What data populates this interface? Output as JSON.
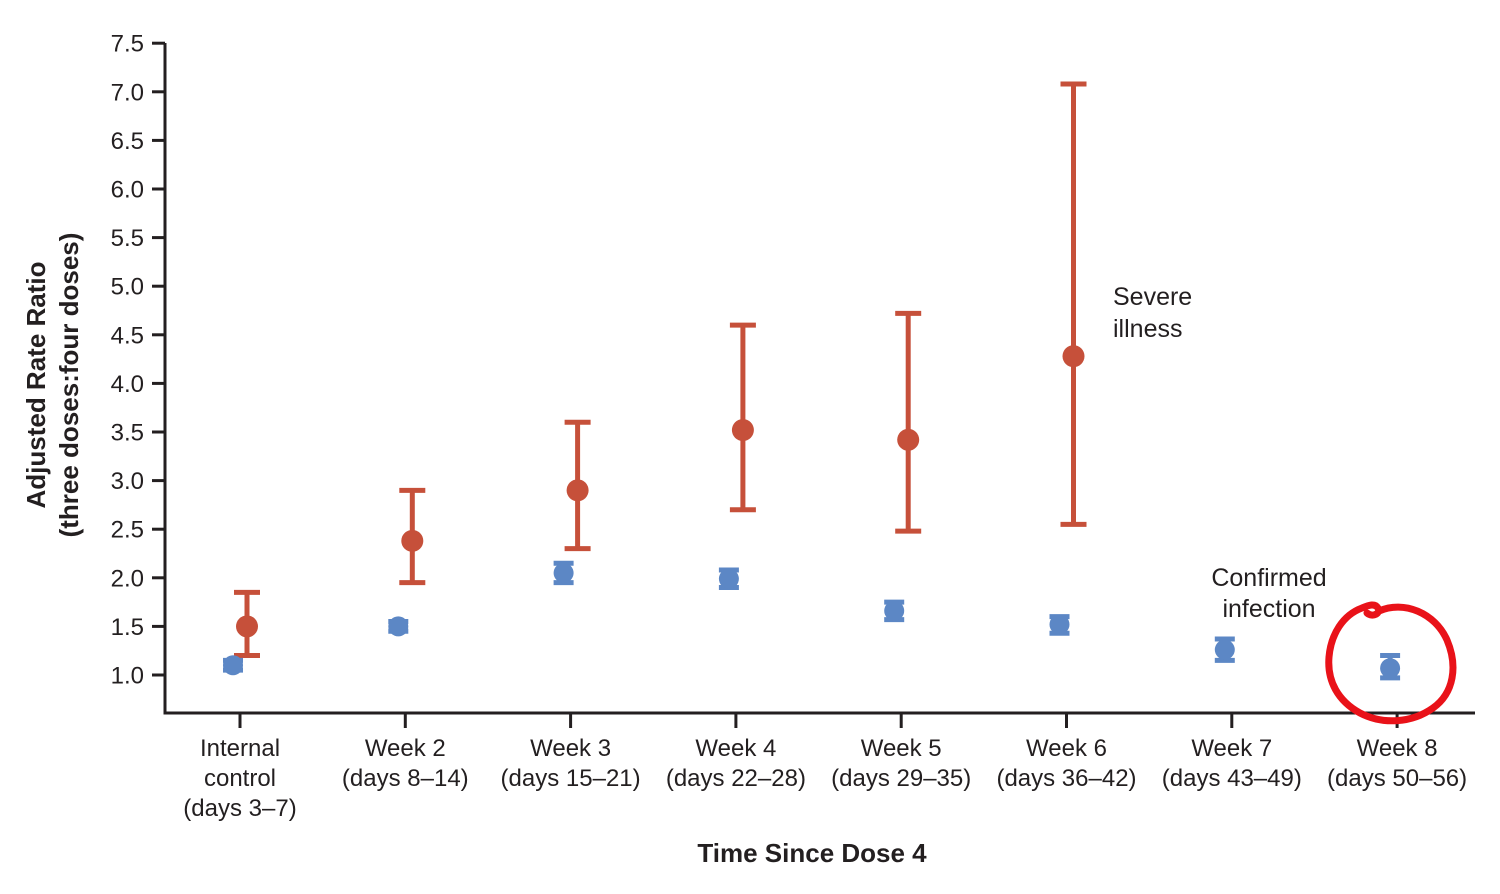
{
  "figure": {
    "background": "#ffffff",
    "y_axis_title_line1": "Adjusted Rate Ratio",
    "y_axis_title_line2": "(three doses:four doses)",
    "x_axis_title": "Time Since Dose 4",
    "severe_label": {
      "line1": "Severe",
      "line2": "illness"
    },
    "confirmed_label": {
      "line1": "Confirmed",
      "line2": "infection"
    }
  },
  "colors": {
    "severe_series": "#c6503a",
    "confirmed_series": "#5c87c5",
    "axis": "#231f20",
    "text": "#231f20",
    "annotation_circle": "#e91219"
  },
  "chart_data": {
    "type": "scatter",
    "title": "",
    "xlabel": "Time Since Dose 4",
    "ylabel": "Adjusted Rate Ratio (three doses:four doses)",
    "ylim": [
      0.6,
      7.5
    ],
    "yticks": [
      1.0,
      1.5,
      2.0,
      2.5,
      3.0,
      3.5,
      4.0,
      4.5,
      5.0,
      5.5,
      6.0,
      6.5,
      7.0,
      7.5
    ],
    "grid": false,
    "legend_position": "inline text labels next to series",
    "categories": [
      [
        "Internal",
        "control",
        "(days 3–7)"
      ],
      [
        "Week 2",
        "(days 8–14)"
      ],
      [
        "Week 3",
        "(days 15–21)"
      ],
      [
        "Week 4",
        "(days 22–28)"
      ],
      [
        "Week 5",
        "(days 29–35)"
      ],
      [
        "Week 6",
        "(days 36–42)"
      ],
      [
        "Week 7",
        "(days 43–49)"
      ],
      [
        "Week 8",
        "(days 50–56)"
      ]
    ],
    "series": [
      {
        "name": "Severe illness",
        "color": "#c6503a",
        "marker": "circle",
        "values": [
          1.5,
          2.38,
          2.9,
          3.52,
          3.42,
          4.28,
          null,
          null
        ],
        "ci_low": [
          1.2,
          1.95,
          2.3,
          2.7,
          2.48,
          2.55,
          null,
          null
        ],
        "ci_high": [
          1.85,
          2.9,
          3.6,
          4.6,
          4.72,
          7.08,
          null,
          null
        ]
      },
      {
        "name": "Confirmed infection",
        "color": "#5c87c5",
        "marker": "circle",
        "values": [
          1.1,
          1.5,
          2.05,
          1.99,
          1.66,
          1.52,
          1.26,
          1.07
        ],
        "ci_low": [
          1.05,
          1.45,
          1.95,
          1.9,
          1.57,
          1.43,
          1.15,
          0.97
        ],
        "ci_high": [
          1.15,
          1.55,
          2.15,
          2.08,
          1.75,
          1.6,
          1.37,
          1.2
        ]
      }
    ],
    "annotation": {
      "shape": "hand-drawn red circle",
      "around": "Week 8 confirmed infection data point",
      "color": "#e91219"
    }
  }
}
